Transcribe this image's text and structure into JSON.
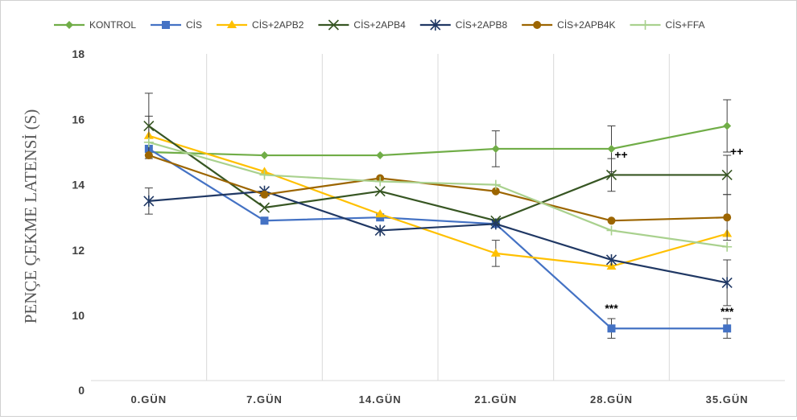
{
  "chart_data": {
    "type": "line",
    "title": "",
    "xlabel": "",
    "ylabel": "PENÇE ÇEKME LATENSİ (S)",
    "categories": [
      "0.GÜN",
      "7.GÜN",
      "14.GÜN",
      "21.GÜN",
      "28.GÜN",
      "35.GÜN"
    ],
    "y_ticks": [
      "18",
      "16",
      "14",
      "12",
      "10",
      "0"
    ],
    "axis_break": "0 label shown below 10",
    "ylim": [
      8,
      18
    ],
    "grid": "vertical lines between categories",
    "legend_position": "top",
    "series": [
      {
        "name": "KONTROL",
        "color": "#70ad47",
        "marker": "diamond",
        "values": [
          15.0,
          14.9,
          14.9,
          15.1,
          15.1,
          15.8
        ],
        "errors": [
          0,
          0,
          0,
          0.55,
          0.7,
          0.8
        ]
      },
      {
        "name": "CİS",
        "color": "#4472c4",
        "marker": "square",
        "values": [
          15.1,
          12.9,
          13.0,
          12.8,
          9.6,
          9.6
        ],
        "errors": [
          0,
          0,
          0,
          0,
          0.3,
          0.3
        ]
      },
      {
        "name": "CİS+2APB2",
        "color": "#ffc000",
        "marker": "triangle",
        "values": [
          15.5,
          14.4,
          13.1,
          11.9,
          11.5,
          12.5
        ],
        "errors": [
          0.6,
          0,
          0,
          0.4,
          0,
          0
        ]
      },
      {
        "name": "CİS+2APB4",
        "color": "#375623",
        "marker": "x",
        "values": [
          15.8,
          13.3,
          13.8,
          12.9,
          14.3,
          14.3
        ],
        "errors": [
          1.0,
          0,
          0,
          0,
          0.5,
          0.6
        ]
      },
      {
        "name": "CİS+2APB8",
        "color": "#203864",
        "marker": "star",
        "values": [
          13.5,
          13.8,
          12.6,
          12.8,
          11.7,
          11.0
        ],
        "errors": [
          0.4,
          0,
          0,
          0,
          0,
          0.7
        ]
      },
      {
        "name": "CİS+2APB4K",
        "color": "#9c6500",
        "marker": "circle",
        "values": [
          14.9,
          13.7,
          14.2,
          13.8,
          12.9,
          13.0
        ],
        "errors": [
          0,
          0,
          0,
          0,
          0,
          0.7
        ]
      },
      {
        "name": "CİS+FFA",
        "color": "#a9d18e",
        "marker": "plus",
        "values": [
          15.3,
          14.3,
          14.1,
          14.0,
          12.6,
          12.1
        ],
        "errors": [
          0,
          0,
          0,
          0,
          0,
          0
        ]
      }
    ],
    "annotations": [
      {
        "text": "++",
        "x": "28.GÜN",
        "y": 14.8
      },
      {
        "text": "++",
        "x": "35.GÜN",
        "y": 14.9
      },
      {
        "text": "***",
        "x": "28.GÜN",
        "y": 10.1
      },
      {
        "text": "***",
        "x": "35.GÜN",
        "y": 10.0
      }
    ]
  }
}
